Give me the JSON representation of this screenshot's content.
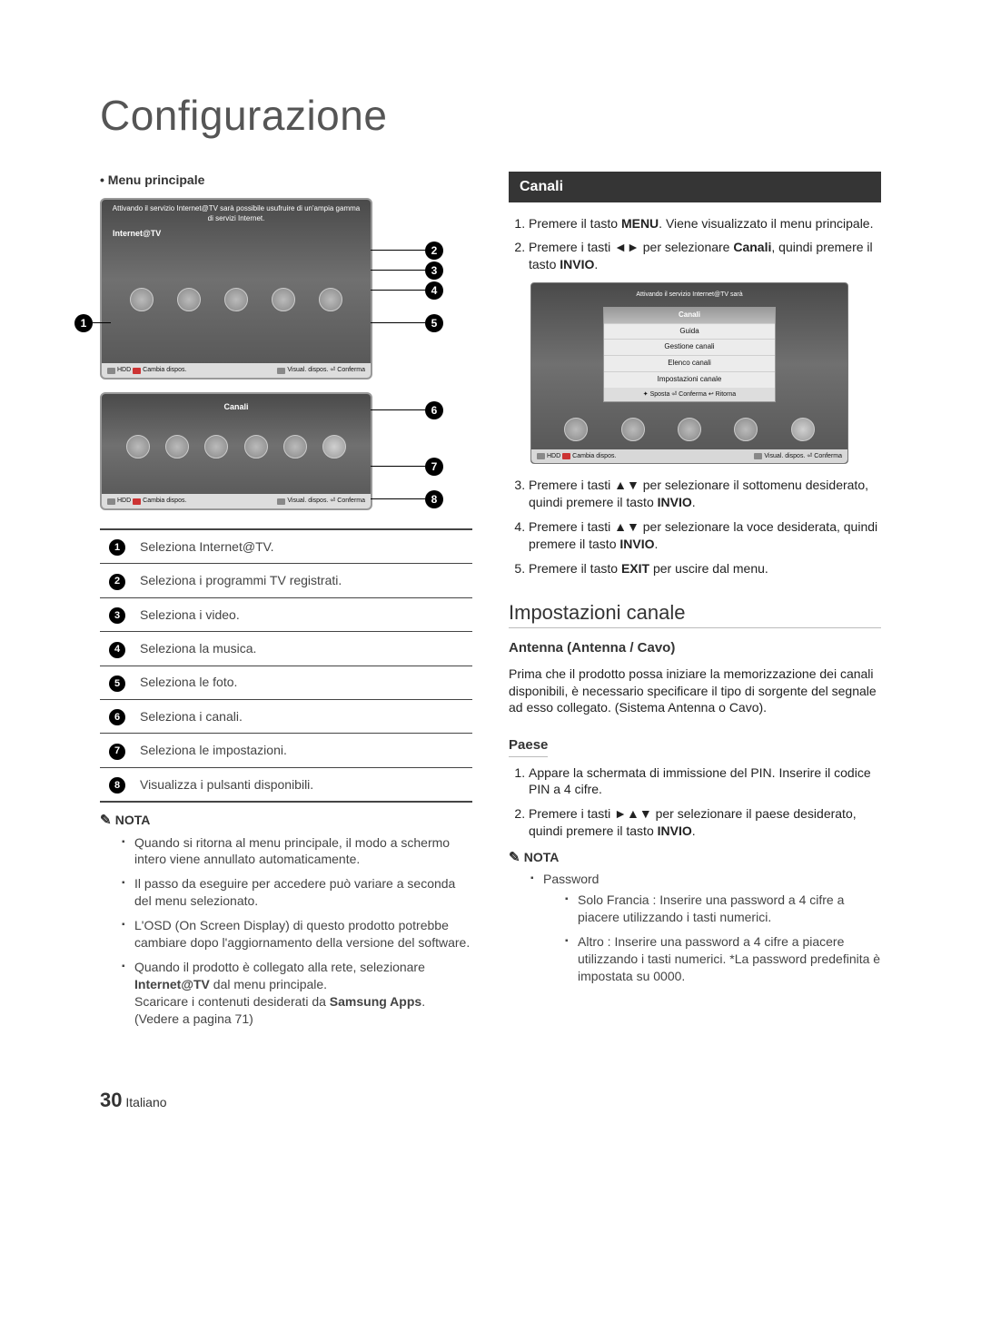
{
  "pageTitle": "Configurazione",
  "menuPrincipale": "Menu principale",
  "banner": "Attivando il servizio Internet@TV sarà possibile usufruire di un'ampia gamma di servizi Internet.",
  "internetTv": "Internet@TV",
  "canaliLabel": "Canali",
  "tvFooter": {
    "hdd": "HDD",
    "cambia": "Cambia dispos.",
    "visual": "Visual. dispos.",
    "conferma": "Conferma"
  },
  "legend": [
    "Seleziona Internet@TV.",
    "Seleziona i programmi TV registrati.",
    "Seleziona i video.",
    "Seleziona la musica.",
    "Seleziona le foto.",
    "Seleziona i canali.",
    "Seleziona le impostazioni.",
    "Visualizza i pulsanti disponibili."
  ],
  "notaLeft": {
    "label": "NOTA",
    "items": [
      "Quando si ritorna al menu principale, il modo a schermo intero viene annullato automaticamente.",
      "Il passo da eseguire per accedere può variare a seconda del menu selezionato.",
      "L'OSD (On Screen Display) di questo prodotto potrebbe cambiare dopo l'aggiornamento della versione del software.",
      "Quando il prodotto è collegato alla rete, selezionare Internet@TV dal menu principale. Scaricare i contenuti desiderati da Samsung Apps. (Vedere a pagina 71)"
    ]
  },
  "canaliSection": "Canali",
  "canaliSteps12": [
    {
      "pre": "Premere il tasto ",
      "b": "MENU",
      "post": ". Viene visualizzato il menu principale."
    },
    {
      "pre": "Premere i tasti ◄► per selezionare ",
      "b": "Canali",
      "post": ", quindi premere il tasto ",
      "b2": "INVIO",
      "post2": "."
    }
  ],
  "popup": {
    "title": "Canali",
    "items": [
      "Guida",
      "Gestione canali",
      "Elenco canali",
      "Impostazioni canale"
    ],
    "footer": "✦ Sposta  ⏎ Conferma  ↩ Ritorna"
  },
  "bannerShort": "Attivando il servizio Internet@TV sarà",
  "canaliSteps345": [
    {
      "pre": "Premere i tasti ▲▼ per selezionare il sottomenu desiderato, quindi premere il tasto ",
      "b": "INVIO",
      "post": "."
    },
    {
      "pre": "Premere i tasti ▲▼ per selezionare la voce desiderata, quindi premere il tasto ",
      "b": "INVIO",
      "post": "."
    },
    {
      "pre": "Premere il tasto ",
      "b": "EXIT",
      "post": " per uscire dal menu."
    }
  ],
  "impostazioni": "Impostazioni canale",
  "antennaTitle": "Antenna (Antenna / Cavo)",
  "antennaPara": "Prima che il prodotto possa iniziare la memorizzazione dei canali disponibili, è necessario specificare il tipo di sorgente del segnale ad esso collegato. (Sistema Antenna o Cavo).",
  "paeseTitle": "Paese",
  "paeseSteps": [
    "Appare la schermata di immissione del PIN. Inserire il codice PIN a 4 cifre.",
    {
      "pre": "Premere i tasti ►▲▼ per selezionare il paese desiderato, quindi premere il tasto ",
      "b": "INVIO",
      "post": "."
    }
  ],
  "notaRight": {
    "label": "NOTA",
    "bullet": "Password",
    "subs": [
      "Solo Francia : Inserire una password a 4 cifre a piacere utilizzando i tasti numerici.",
      "Altro : Inserire una password a 4 cifre a piacere utilizzando i tasti numerici. *La password predefinita è impostata su 0000."
    ]
  },
  "footer": {
    "pageNum": "30",
    "lang": "Italiano"
  }
}
